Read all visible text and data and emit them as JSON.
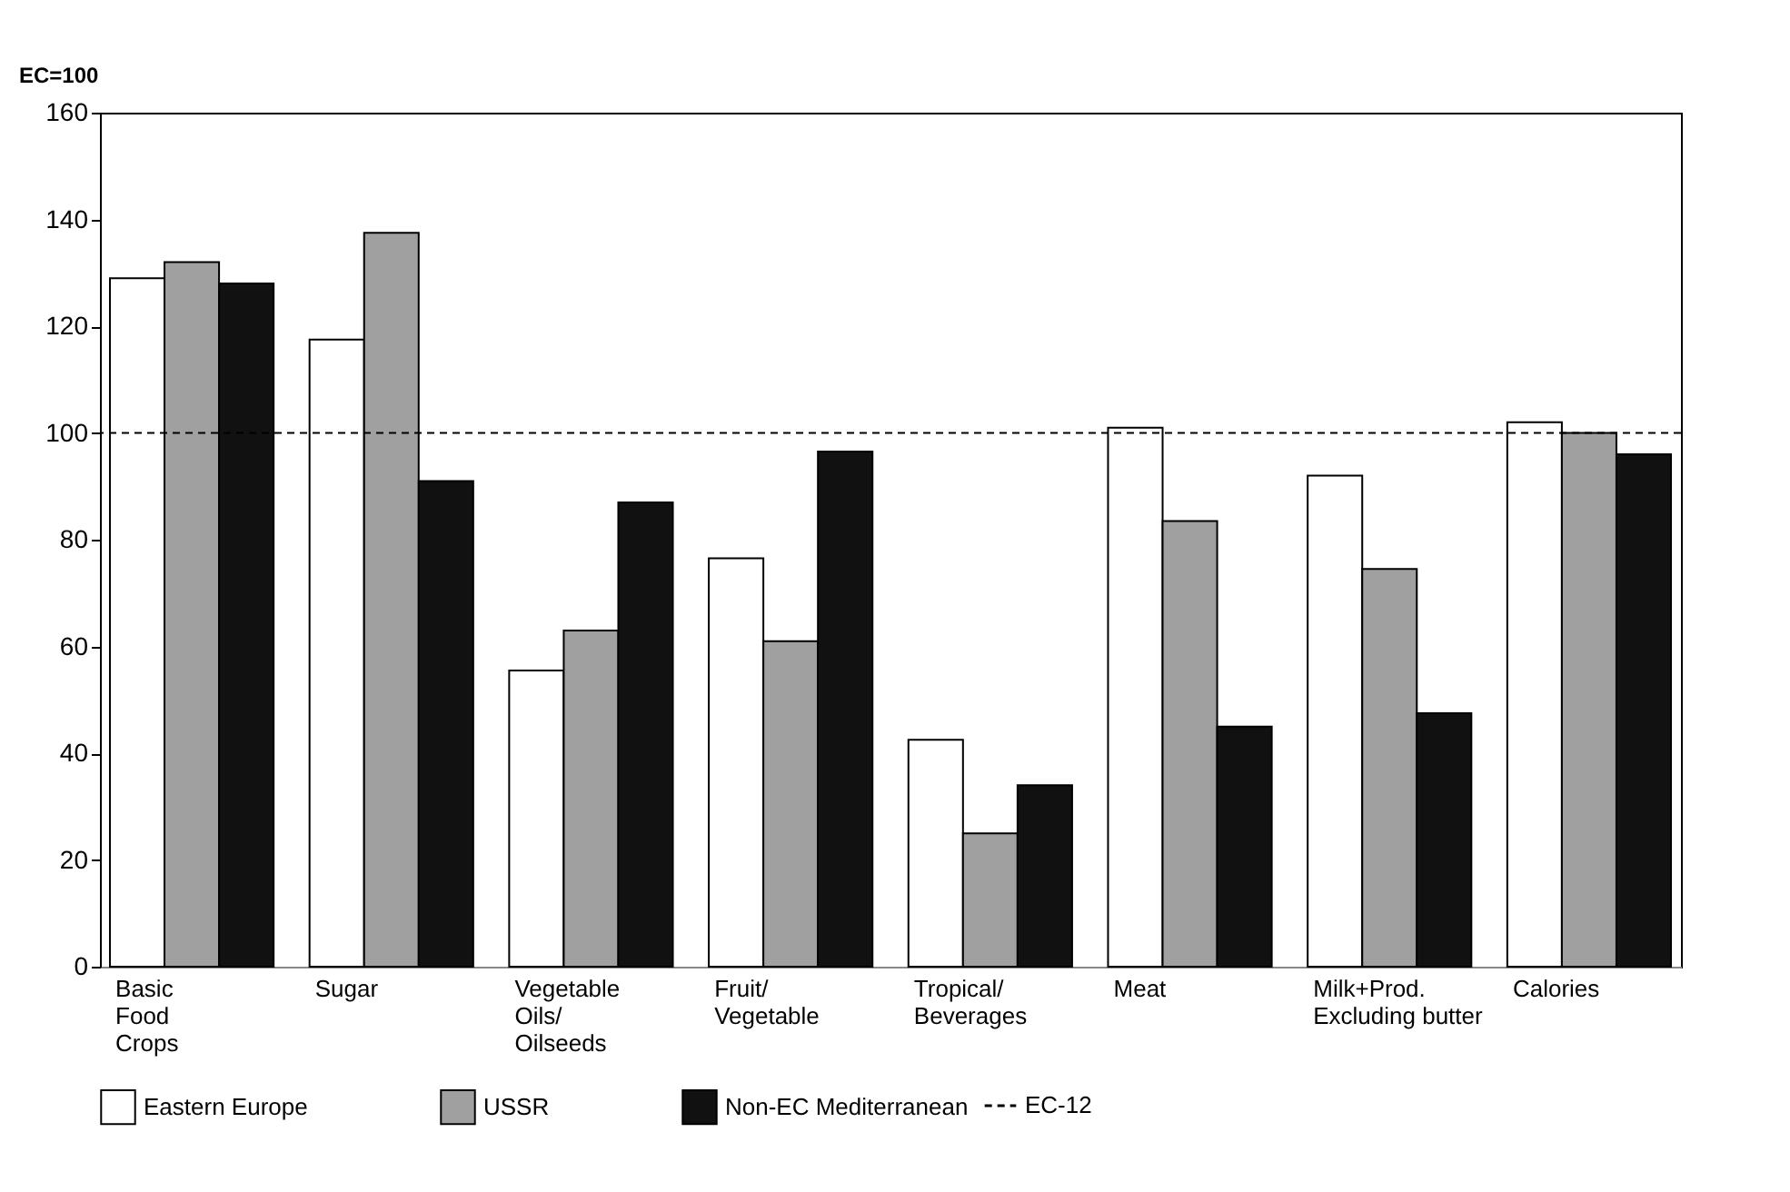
{
  "chart_data": {
    "type": "bar",
    "ylabel": "EC=100",
    "categories": [
      "Basic\nFood\nCrops",
      "Sugar",
      "Vegetable\nOils/\nOilseeds",
      "Fruit/\nVegetable",
      "Tropical/\nBeverages",
      "Meat",
      "Milk+Prod.\nExcluding butter",
      "Calories"
    ],
    "series": [
      {
        "name": "Eastern Europe",
        "color": "#ffffff",
        "values": [
          129,
          117.5,
          55.5,
          76.5,
          42.5,
          101,
          92,
          102
        ]
      },
      {
        "name": "USSR",
        "color": "#a0a0a0",
        "values": [
          132,
          137.5,
          63,
          61,
          25,
          83.5,
          74.5,
          100
        ]
      },
      {
        "name": "Non-EC Mediterranean",
        "color": "#111111",
        "values": [
          128,
          91,
          87,
          96.5,
          34,
          45,
          47.5,
          96
        ]
      }
    ],
    "ylim": [
      0,
      160
    ],
    "yticks": [
      0,
      20,
      40,
      60,
      80,
      100,
      120,
      140,
      160
    ],
    "ref_lines": [
      {
        "axis": "y",
        "value": 100,
        "label": "EC-12",
        "line_style": "dashed",
        "color": "#000000"
      }
    ],
    "grid": false,
    "legend": "bottom"
  }
}
